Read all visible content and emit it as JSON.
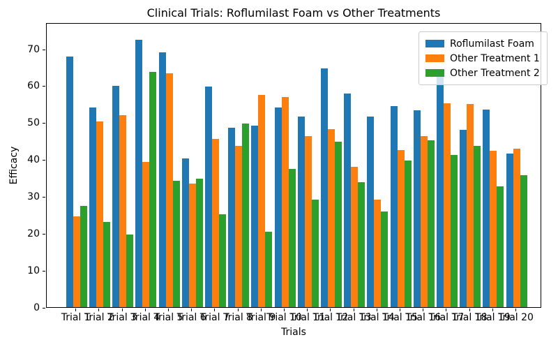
{
  "chart_data": {
    "type": "bar",
    "title": "Clinical Trials: Roflumilast Foam vs Other Treatments",
    "xlabel": "Trials",
    "ylabel": "Efficacy",
    "categories": [
      "Trial 1",
      "Trial 2",
      "Trial 3",
      "Trial 4",
      "Trial 5",
      "Trial 6",
      "Trial 7",
      "Trial 8",
      "Trial 9",
      "Trial 10",
      "Trial 11",
      "Trial 12",
      "Trial 13",
      "Trial 14",
      "Trial 15",
      "Trial 16",
      "Trial 17",
      "Trial 18",
      "Trial 19",
      "Trial 20"
    ],
    "series": [
      {
        "name": "Roflumilast Foam",
        "color": "#1f77b4",
        "values": [
          67.9,
          54.2,
          60.0,
          72.4,
          69.0,
          40.4,
          59.8,
          48.6,
          49.2,
          54.2,
          51.6,
          64.8,
          57.9,
          51.6,
          54.5,
          53.4,
          63.9,
          48.1,
          53.5,
          41.6
        ]
      },
      {
        "name": "Other Treatment 1",
        "color": "#ff7f0e",
        "values": [
          24.6,
          50.3,
          52.0,
          39.3,
          63.3,
          33.5,
          45.6,
          43.7,
          57.5,
          56.9,
          46.4,
          48.2,
          38.0,
          29.1,
          42.6,
          46.4,
          55.2,
          55.1,
          42.3,
          42.9
        ]
      },
      {
        "name": "Other Treatment 2",
        "color": "#2ca02c",
        "values": [
          27.5,
          23.1,
          19.6,
          63.8,
          34.2,
          34.9,
          25.1,
          49.7,
          20.5,
          37.4,
          29.2,
          44.8,
          33.9,
          25.9,
          39.7,
          45.3,
          41.2,
          43.7,
          32.7,
          35.8
        ]
      }
    ],
    "yticks": [
      0,
      10,
      20,
      30,
      40,
      50,
      60,
      70
    ],
    "ylim": [
      0,
      77.2
    ],
    "grid": false,
    "legend_position": "upper right"
  }
}
